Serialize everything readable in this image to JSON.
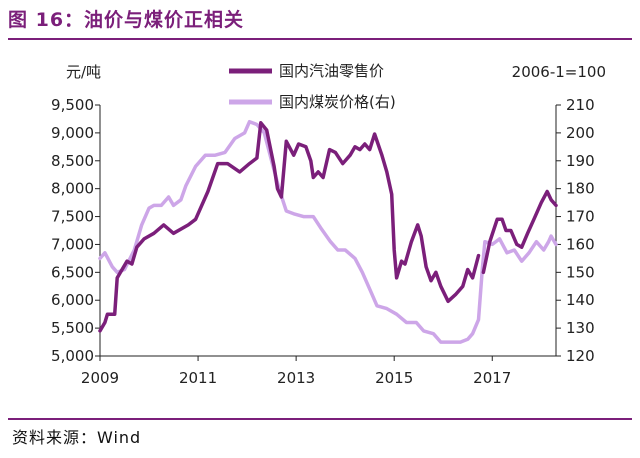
{
  "header": {
    "title": "图 16：油价与煤价正相关"
  },
  "footer": {
    "source": "资料来源：Wind"
  },
  "colors": {
    "brand": "#7B1F7A",
    "oil": "#7B1F7A",
    "coal": "#CDA6E8"
  },
  "chart_data": {
    "type": "line",
    "title": "图 16：油价与煤价正相关",
    "ylabel_left": "元/吨",
    "ylabel_right": "2006-1=100",
    "xlim": [
      2009,
      2018.3
    ],
    "ylim_left": [
      5000,
      9500
    ],
    "ylim_right": [
      120,
      210
    ],
    "x_ticks": [
      2009,
      2011,
      2013,
      2015,
      2017
    ],
    "x_tick_labels": [
      "2009",
      "2011",
      "2013",
      "2015",
      "2017"
    ],
    "y_left_ticks": [
      5000,
      5500,
      6000,
      6500,
      7000,
      7500,
      8000,
      8500,
      9000,
      9500
    ],
    "y_left_tick_labels": [
      "5,000",
      "5,500",
      "6,000",
      "6,500",
      "7,000",
      "7,500",
      "8,000",
      "8,500",
      "9,000",
      "9,500"
    ],
    "y_right_ticks": [
      120,
      130,
      140,
      150,
      160,
      170,
      180,
      190,
      200,
      210
    ],
    "y_right_tick_labels": [
      "120",
      "130",
      "140",
      "150",
      "160",
      "170",
      "180",
      "190",
      "200",
      "210"
    ],
    "series": [
      {
        "name": "国内汽油零售价",
        "axis": "left",
        "points": [
          [
            2009.0,
            5450
          ],
          [
            2009.1,
            5600
          ],
          [
            2009.15,
            5750
          ],
          [
            2009.3,
            5750
          ],
          [
            2009.35,
            6400
          ],
          [
            2009.45,
            6550
          ],
          [
            2009.55,
            6700
          ],
          [
            2009.65,
            6650
          ],
          [
            2009.75,
            6950
          ],
          [
            2009.9,
            7100
          ],
          [
            2010.1,
            7200
          ],
          [
            2010.3,
            7350
          ],
          [
            2010.5,
            7200
          ],
          [
            2010.8,
            7350
          ],
          [
            2010.95,
            7450
          ],
          [
            2011.2,
            7950
          ],
          [
            2011.4,
            8450
          ],
          [
            2011.6,
            8450
          ],
          [
            2011.85,
            8300
          ],
          [
            2012.05,
            8450
          ],
          [
            2012.2,
            8550
          ],
          [
            2012.28,
            9180
          ],
          [
            2012.4,
            9050
          ],
          [
            2012.55,
            8400
          ],
          [
            2012.62,
            8000
          ],
          [
            2012.7,
            7850
          ],
          [
            2012.8,
            8850
          ],
          [
            2012.95,
            8600
          ],
          [
            2013.05,
            8800
          ],
          [
            2013.2,
            8750
          ],
          [
            2013.3,
            8500
          ],
          [
            2013.35,
            8200
          ],
          [
            2013.45,
            8300
          ],
          [
            2013.55,
            8200
          ],
          [
            2013.68,
            8700
          ],
          [
            2013.8,
            8650
          ],
          [
            2013.95,
            8450
          ],
          [
            2014.1,
            8600
          ],
          [
            2014.2,
            8750
          ],
          [
            2014.3,
            8700
          ],
          [
            2014.4,
            8800
          ],
          [
            2014.5,
            8700
          ],
          [
            2014.6,
            8980
          ],
          [
            2014.75,
            8600
          ],
          [
            2014.85,
            8300
          ],
          [
            2014.95,
            7900
          ],
          [
            2015.0,
            6900
          ],
          [
            2015.05,
            6400
          ],
          [
            2015.15,
            6700
          ],
          [
            2015.22,
            6650
          ],
          [
            2015.35,
            7050
          ],
          [
            2015.48,
            7350
          ],
          [
            2015.55,
            7150
          ],
          [
            2015.65,
            6600
          ],
          [
            2015.75,
            6350
          ],
          [
            2015.85,
            6500
          ],
          [
            2015.95,
            6250
          ],
          [
            2016.1,
            5980
          ],
          [
            2016.25,
            6100
          ],
          [
            2016.4,
            6250
          ],
          [
            2016.5,
            6550
          ],
          [
            2016.6,
            6400
          ],
          [
            2016.72,
            6800
          ]
        ]
      },
      {
        "name": "国内汽油零售价",
        "axis": "left",
        "points": [
          [
            2016.82,
            6500
          ],
          [
            2016.95,
            7050
          ],
          [
            2017.1,
            7450
          ],
          [
            2017.2,
            7450
          ],
          [
            2017.28,
            7250
          ],
          [
            2017.38,
            7250
          ],
          [
            2017.5,
            7000
          ],
          [
            2017.6,
            6950
          ],
          [
            2017.72,
            7200
          ],
          [
            2017.85,
            7450
          ],
          [
            2018.0,
            7750
          ],
          [
            2018.12,
            7950
          ],
          [
            2018.2,
            7800
          ],
          [
            2018.3,
            7700
          ]
        ]
      },
      {
        "name": "国内煤炭价格(右)",
        "axis": "right",
        "points": [
          [
            2009.0,
            155
          ],
          [
            2009.1,
            157
          ],
          [
            2009.25,
            152
          ],
          [
            2009.35,
            150
          ],
          [
            2009.5,
            151
          ],
          [
            2009.7,
            158
          ],
          [
            2009.85,
            167
          ],
          [
            2010.0,
            173
          ],
          [
            2010.1,
            174
          ],
          [
            2010.25,
            174
          ],
          [
            2010.4,
            177
          ],
          [
            2010.5,
            174
          ],
          [
            2010.65,
            176
          ],
          [
            2010.75,
            181
          ],
          [
            2010.95,
            188
          ],
          [
            2011.15,
            192
          ],
          [
            2011.35,
            192
          ],
          [
            2011.55,
            193
          ],
          [
            2011.75,
            198
          ],
          [
            2011.95,
            200
          ],
          [
            2012.05,
            204
          ],
          [
            2012.2,
            203
          ],
          [
            2012.35,
            200
          ],
          [
            2012.5,
            190
          ],
          [
            2012.65,
            180
          ],
          [
            2012.8,
            172
          ],
          [
            2012.95,
            171
          ],
          [
            2013.15,
            170
          ],
          [
            2013.35,
            170
          ],
          [
            2013.5,
            166
          ],
          [
            2013.7,
            161
          ],
          [
            2013.85,
            158
          ],
          [
            2014.0,
            158
          ],
          [
            2014.2,
            155
          ],
          [
            2014.35,
            150
          ],
          [
            2014.5,
            144
          ],
          [
            2014.65,
            138
          ],
          [
            2014.85,
            137
          ],
          [
            2015.05,
            135
          ],
          [
            2015.25,
            132
          ],
          [
            2015.45,
            132
          ],
          [
            2015.6,
            129
          ],
          [
            2015.8,
            128
          ],
          [
            2015.95,
            125
          ],
          [
            2016.15,
            125
          ],
          [
            2016.35,
            125
          ],
          [
            2016.5,
            126
          ],
          [
            2016.6,
            128
          ],
          [
            2016.72,
            133
          ],
          [
            2016.8,
            152
          ],
          [
            2016.85,
            161
          ],
          [
            2017.0,
            160
          ],
          [
            2017.15,
            162
          ],
          [
            2017.3,
            157
          ],
          [
            2017.45,
            158
          ],
          [
            2017.6,
            154
          ],
          [
            2017.75,
            157
          ],
          [
            2017.9,
            161
          ],
          [
            2018.05,
            158
          ],
          [
            2018.15,
            161
          ],
          [
            2018.2,
            163
          ],
          [
            2018.3,
            160
          ]
        ]
      }
    ],
    "legend": [
      {
        "name": "国内汽油零售价",
        "color": "#7B1F7A"
      },
      {
        "name": "国内煤炭价格(右)",
        "color": "#CDA6E8"
      }
    ],
    "legend_position": "top-center",
    "grid": false
  }
}
